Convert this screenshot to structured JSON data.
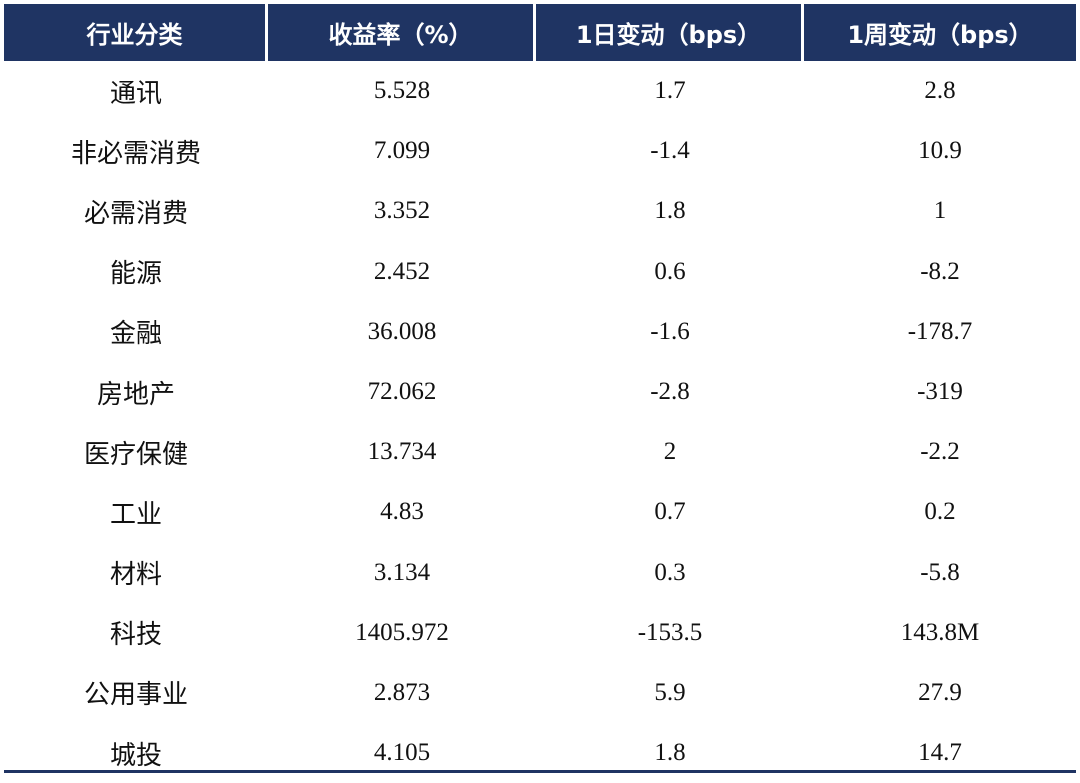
{
  "table": {
    "headers": [
      "行业分类",
      "收益率（%）",
      "1日变动（bps）",
      "1周变动（bps）"
    ],
    "rows": [
      {
        "category": "通讯",
        "yield": "5.528",
        "change_1d": "1.7",
        "change_1w": "2.8"
      },
      {
        "category": "非必需消费",
        "yield": "7.099",
        "change_1d": "-1.4",
        "change_1w": "10.9"
      },
      {
        "category": "必需消费",
        "yield": "3.352",
        "change_1d": "1.8",
        "change_1w": "1"
      },
      {
        "category": "能源",
        "yield": "2.452",
        "change_1d": "0.6",
        "change_1w": "-8.2"
      },
      {
        "category": "金融",
        "yield": "36.008",
        "change_1d": "-1.6",
        "change_1w": "-178.7"
      },
      {
        "category": "房地产",
        "yield": "72.062",
        "change_1d": "-2.8",
        "change_1w": "-319"
      },
      {
        "category": "医疗保健",
        "yield": "13.734",
        "change_1d": "2",
        "change_1w": "-2.2"
      },
      {
        "category": "工业",
        "yield": "4.83",
        "change_1d": "0.7",
        "change_1w": "0.2"
      },
      {
        "category": "材料",
        "yield": "3.134",
        "change_1d": "0.3",
        "change_1w": "-5.8"
      },
      {
        "category": "科技",
        "yield": "1405.972",
        "change_1d": "-153.5",
        "change_1w": "143.8M"
      },
      {
        "category": "公用事业",
        "yield": "2.873",
        "change_1d": "5.9",
        "change_1w": "27.9"
      },
      {
        "category": "城投",
        "yield": "4.105",
        "change_1d": "1.8",
        "change_1w": "14.7"
      }
    ]
  },
  "colors": {
    "header_background": "#1f3463",
    "header_text": "#ffffff",
    "body_text": "#111111",
    "bottom_rule": "#1f3463"
  }
}
